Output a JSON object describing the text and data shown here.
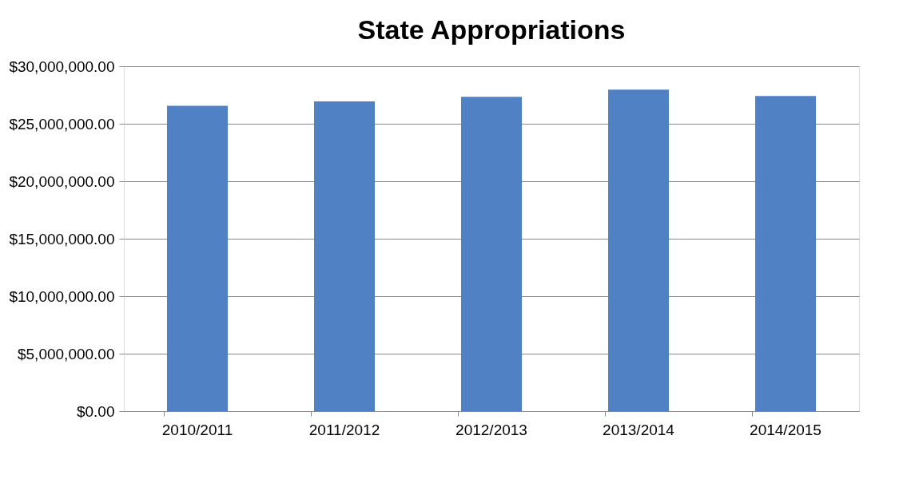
{
  "chart_data": {
    "type": "bar",
    "title": "State Appropriations",
    "categories": [
      "2010/2011",
      "2011/2012",
      "2012/2013",
      "2013/2014",
      "2014/2015"
    ],
    "values": [
      26570000,
      26950000,
      27340000,
      27970000,
      27410000
    ],
    "color": "#4f81c4",
    "ylim": [
      0,
      30000000
    ],
    "yticks": [
      {
        "value": 0,
        "label": "$0.00"
      },
      {
        "value": 5000000,
        "label": "$5,000,000.00"
      },
      {
        "value": 10000000,
        "label": "$10,000,000.00"
      },
      {
        "value": 15000000,
        "label": "$15,000,000.00"
      },
      {
        "value": 20000000,
        "label": "$20,000,000.00"
      },
      {
        "value": 25000000,
        "label": "$25,000,000.00"
      },
      {
        "value": 30000000,
        "label": "$30,000,000.00"
      }
    ],
    "grid": "y"
  }
}
